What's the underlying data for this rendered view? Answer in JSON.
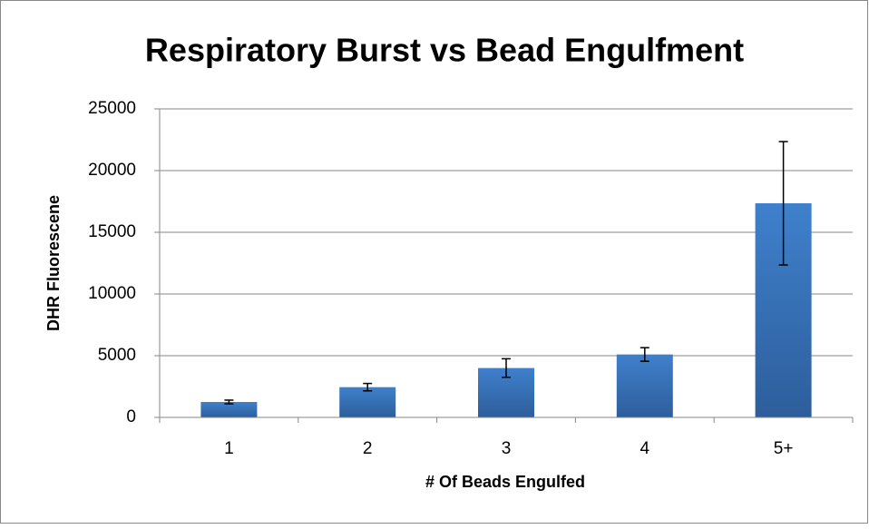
{
  "chart_data": {
    "type": "bar",
    "title": "Respiratory Burst vs Bead Engulfment",
    "x_label": "# Of Beads Engulfed",
    "y_label": "DHR Fluorescene",
    "categories": [
      "1",
      "2",
      "3",
      "4",
      "5+"
    ],
    "values": [
      1250,
      2450,
      4000,
      5100,
      17350
    ],
    "errors": [
      150,
      300,
      750,
      550,
      5000
    ],
    "color": "#3a74bd",
    "ylim": [
      0,
      25000
    ],
    "yticks": [
      0,
      5000,
      10000,
      15000,
      20000,
      25000
    ],
    "grid": true
  }
}
